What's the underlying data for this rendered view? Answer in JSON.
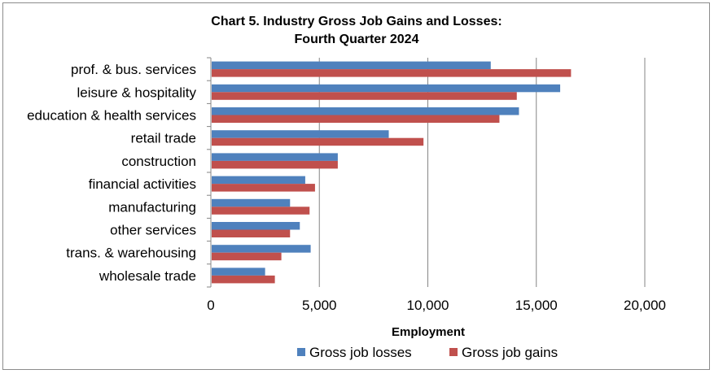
{
  "chart_data": {
    "type": "bar",
    "orientation": "horizontal",
    "title_line1": "Chart 5. Industry Gross Job Gains and Losses:",
    "title_line2": "Fourth Quarter 2024",
    "xlabel": "Employment",
    "ylabel": "",
    "xlim": [
      0,
      20000
    ],
    "xticks": [
      "0",
      "5,000",
      "10,000",
      "15,000",
      "20,000"
    ],
    "grid": "vertical",
    "legend_position": "bottom",
    "categories": [
      "prof. & bus. services",
      "leisure & hospitality",
      "education & health services",
      "retail trade",
      "construction",
      "financial activities",
      "manufacturing",
      "other services",
      "trans. & warehousing",
      "wholesale trade"
    ],
    "series": [
      {
        "name": "Gross job losses",
        "color": "#4f81bd",
        "values": [
          12900,
          16100,
          14200,
          8200,
          5850,
          4350,
          3650,
          4100,
          4600,
          2500
        ]
      },
      {
        "name": "Gross job gains",
        "color": "#c0504d",
        "values": [
          16600,
          14100,
          13300,
          9800,
          5850,
          4800,
          4550,
          3650,
          3250,
          2950
        ]
      }
    ]
  }
}
